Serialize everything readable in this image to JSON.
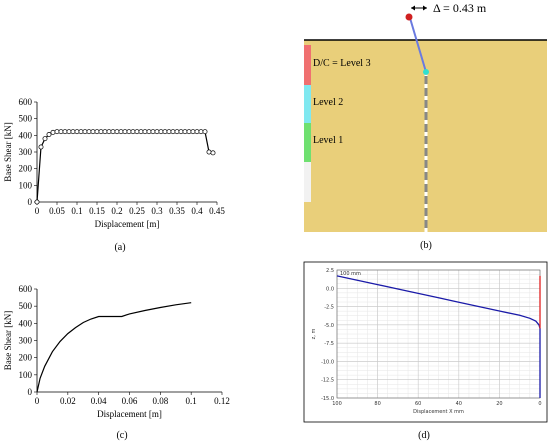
{
  "panels": {
    "a": {
      "caption": "(a)",
      "chart_data": {
        "type": "line",
        "xlabel": "Displacement [m]",
        "ylabel": "Base Shear [kN]",
        "xlim": [
          0,
          0.45
        ],
        "ylim": [
          0,
          600
        ],
        "xticks": [
          0,
          0.05,
          0.1,
          0.15,
          0.2,
          0.25,
          0.3,
          0.35,
          0.4,
          0.45
        ],
        "xtick_labels": [
          "0",
          "0.05",
          "0.1",
          "0.15",
          "0.2",
          "0.25",
          "0.3",
          "0.35",
          "0.4",
          "0.45"
        ],
        "yticks": [
          0,
          100,
          200,
          300,
          400,
          500,
          600
        ],
        "ytick_labels": [
          "0",
          "100",
          "200",
          "300",
          "400",
          "500",
          "600"
        ],
        "marker": "circle-open",
        "x": [
          0,
          0.01,
          0.02,
          0.03,
          0.04,
          0.05,
          0.06,
          0.07,
          0.08,
          0.09,
          0.1,
          0.11,
          0.12,
          0.13,
          0.14,
          0.15,
          0.16,
          0.17,
          0.18,
          0.19,
          0.2,
          0.21,
          0.22,
          0.23,
          0.24,
          0.25,
          0.26,
          0.27,
          0.28,
          0.29,
          0.3,
          0.31,
          0.32,
          0.33,
          0.34,
          0.35,
          0.36,
          0.37,
          0.38,
          0.39,
          0.4,
          0.41,
          0.42,
          0.43,
          0.44
        ],
        "y": [
          0,
          330,
          380,
          405,
          418,
          422,
          422,
          422,
          422,
          422,
          422,
          422,
          422,
          422,
          422,
          422,
          422,
          422,
          422,
          422,
          422,
          422,
          422,
          422,
          422,
          422,
          422,
          422,
          422,
          422,
          422,
          422,
          422,
          422,
          422,
          422,
          422,
          422,
          422,
          422,
          422,
          422,
          422,
          300,
          295
        ]
      }
    },
    "b": {
      "caption": "(b)",
      "delta_label": "Δ = 0.43 m",
      "levels": [
        {
          "label": "D/C = Level 3",
          "color": "#f07070"
        },
        {
          "label": "Level 2",
          "color": "#7fe8f0"
        },
        {
          "label": "Level 1",
          "color": "#6fe070"
        },
        {
          "label": "",
          "color": "#f2f2f2"
        }
      ],
      "soil_color": "#e9cf7a"
    },
    "c": {
      "caption": "(c)",
      "chart_data": {
        "type": "line",
        "xlabel": "Displacement [m]",
        "ylabel": "Base Shear [kN]",
        "xlim": [
          0,
          0.12
        ],
        "ylim": [
          0,
          600
        ],
        "xticks": [
          0,
          0.02,
          0.04,
          0.06,
          0.08,
          0.1,
          0.12
        ],
        "xtick_labels": [
          "0",
          "0.02",
          "0.04",
          "0.06",
          "0.08",
          "0.1",
          "0.12"
        ],
        "yticks": [
          0,
          100,
          200,
          300,
          400,
          500,
          600
        ],
        "ytick_labels": [
          "0",
          "100",
          "200",
          "300",
          "400",
          "500",
          "600"
        ],
        "x": [
          0,
          0.002,
          0.005,
          0.01,
          0.015,
          0.02,
          0.025,
          0.03,
          0.035,
          0.04,
          0.045,
          0.05,
          0.055,
          0.06,
          0.07,
          0.08,
          0.09,
          0.1
        ],
        "y": [
          0,
          80,
          150,
          235,
          295,
          340,
          375,
          405,
          425,
          440,
          440,
          440,
          440,
          455,
          475,
          492,
          508,
          520
        ]
      }
    },
    "d": {
      "caption": "(d)",
      "chart_data": {
        "type": "line",
        "xlabel": "Displacement X mm",
        "ylabel": "z, m",
        "annotation": "100 mm",
        "xlim": [
          100,
          0
        ],
        "ylim": [
          -15,
          2.5
        ],
        "xticks": [
          100,
          80,
          60,
          40,
          20,
          0
        ],
        "xtick_labels": [
          "100",
          "80",
          "60",
          "40",
          "20",
          "0"
        ],
        "yticks": [
          2.5,
          0,
          -2.5,
          -5,
          -7.5,
          -10,
          -12.5,
          -15
        ],
        "ytick_labels": [
          "2.5",
          "0.0",
          "-2.5",
          "-5.0",
          "-7.5",
          "-10.0",
          "-12.5",
          "-15.0"
        ],
        "series": [
          {
            "color": "#1a1aa8",
            "x": [
              100,
              90,
              80,
              70,
              60,
              50,
              40,
              30,
              20,
              10,
              5,
              2,
              0.5,
              0,
              0,
              0
            ],
            "y": [
              1.7,
              1.1,
              0.5,
              -0.1,
              -0.7,
              -1.3,
              -1.9,
              -2.5,
              -3.1,
              -3.7,
              -4.1,
              -4.5,
              -5.0,
              -5.5,
              -8,
              -15
            ]
          },
          {
            "color": "#e02020",
            "x": [
              0,
              0,
              0
            ],
            "y": [
              1.7,
              -3.5,
              -5.5
            ]
          }
        ]
      }
    }
  }
}
